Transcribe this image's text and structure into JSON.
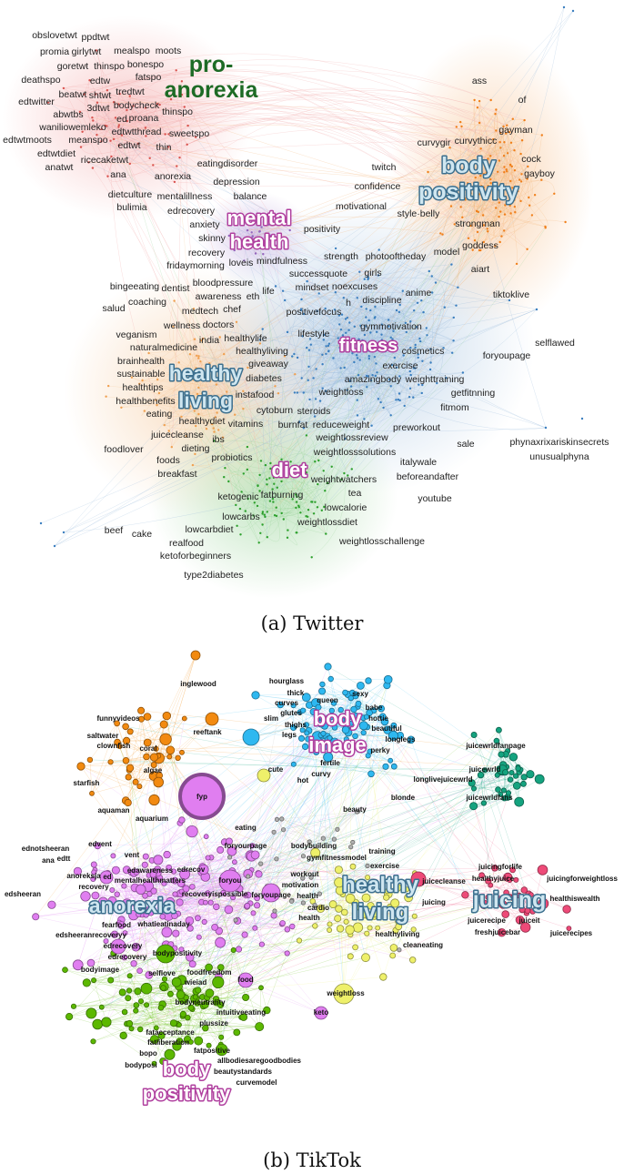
{
  "figure": {
    "twitter": {
      "caption": "(a) Twitter",
      "communities": [
        {
          "lines": [
            "pro-",
            "anorexia"
          ],
          "style": "solid",
          "color": "#1d6b25"
        },
        {
          "lines": [
            "body",
            "positivity"
          ],
          "style": "blue",
          "color": "#cfe6f0"
        },
        {
          "lines": [
            "mental",
            "health"
          ],
          "style": "pink",
          "color": "#ffffff"
        },
        {
          "lines": [
            "healthy",
            "living"
          ],
          "style": "blue",
          "color": "#cfe6f0"
        },
        {
          "lines": [
            "fitness"
          ],
          "style": "pink",
          "color": "#ffffff"
        },
        {
          "lines": [
            "diet"
          ],
          "style": "pink",
          "color": "#ffffff"
        }
      ],
      "hashtags": [
        "obslovetwt",
        "ppdtwt",
        "girlytwt",
        "goretwt",
        "promia",
        "mealspo",
        "moots",
        "thinspo",
        "bonespo",
        "edtw",
        "fatspo",
        "tredtwt",
        "deathspo",
        "beatwt",
        "shtwt",
        "bodycheck",
        "3dtwt",
        "proana",
        "thinspo",
        "edtwitter",
        "abwtbs",
        "waniliowemleko",
        "edtwtmoots",
        "edtwtthread",
        "edtwt",
        "meanspo",
        "ed",
        "sweetspo",
        "edtwtdiet",
        "ricecaketwt",
        "thin",
        "anatwt",
        "ana",
        "eatingdisorder",
        "anorexia",
        "depression",
        "dietculture",
        "mentalillness",
        "edrecovery",
        "bulimia",
        "balance",
        "anxiety",
        "skinny",
        "recovery",
        "loveis",
        "fridaymorning",
        "mindfulness",
        "ass",
        "of",
        "gayman",
        "curvythicc",
        "curvygir",
        "cock",
        "gayboy",
        "twitch",
        "confidence",
        "motivational",
        "style·belly",
        "strongman",
        "goddess",
        "model",
        "aiart",
        "tiktoklive",
        "photooftheday",
        "strength",
        "successquote",
        "noexcuses",
        "girls",
        "mindset",
        "discipline",
        "anime",
        "positivity",
        "bingeeating",
        "coaching",
        "salud",
        "dentist",
        "bloodpressure",
        "awareness",
        "eth",
        "life",
        "chef",
        "h",
        "medtech",
        "doctors",
        "positivefocus",
        "wellness",
        "veganism",
        "naturalmedicine",
        "india",
        "healthylife",
        "lifestyle",
        "gymmotivation",
        "healthyliving",
        "brainhealth",
        "sustainable",
        "healthtips",
        "giveaway",
        "diabetes",
        "exercise",
        "cosmetics",
        "weighttraining",
        "healthbenefits",
        "amazingbody",
        "instafood",
        "weightloss",
        "getfitnning",
        "healthydiet",
        "fitmom",
        "cytoburn",
        "burnfat",
        "steroids",
        "eating",
        "vitamins",
        "reduceweight",
        "juicecleanse",
        "dieting",
        "preworkout",
        "ibs",
        "weightlossreview",
        "foodlover",
        "weightlosssolutions",
        "foods",
        "probiotics",
        "breakfast",
        "sale",
        "italywale",
        "beforeandafter",
        "foryoupage",
        "weightwatchers",
        "tea",
        "ketogenic",
        "fatburning",
        "lowcalorie",
        "youtube",
        "weightlossdiet",
        "lowcarbs",
        "lowcarbdiet",
        "beef",
        "cake",
        "realfood",
        "weightlosschallenge",
        "ketoforbeginners",
        "type2diabetes",
        "phynaxrixariskinsecrets",
        "unusualphyna",
        "selflawed"
      ]
    },
    "tiktok": {
      "caption": "(b) TikTok",
      "communities": [
        {
          "lines": [
            "body",
            "image"
          ],
          "style": "pink",
          "color": "#ffffff"
        },
        {
          "lines": [
            "anorexia"
          ],
          "style": "blue",
          "color": "#cfe6f0"
        },
        {
          "lines": [
            "healthy",
            "living"
          ],
          "style": "blue",
          "color": "#cfe6f0"
        },
        {
          "lines": [
            "juicing"
          ],
          "style": "blue",
          "color": "#cfe6f0"
        },
        {
          "lines": [
            "body",
            "positivity"
          ],
          "style": "pink",
          "color": "#ffffff"
        }
      ],
      "hashtags": [
        "inglewood",
        "funnyvideos",
        "reeftank",
        "saltwater",
        "clownfish",
        "coral",
        "algae",
        "starfish",
        "aquaman",
        "aquarium",
        "fyp",
        "hourglass",
        "thick",
        "sexy",
        "curves",
        "glutes",
        "queen",
        "babe",
        "hottie",
        "slim",
        "thighs",
        "legs",
        "beautiful",
        "longlegs",
        "perky",
        "fertile",
        "juicewrldfanpage",
        "cute",
        "curvy",
        "juicewrld",
        "hot",
        "longlivejuicewrld",
        "blonde",
        "juicewrldfans",
        "beauty",
        "eating",
        "foryourpage",
        "bodybuilding",
        "edvent",
        "ednotsheeran",
        "edtt",
        "ana",
        "vent",
        "ed",
        "edawareness",
        "gymfitnessmodel",
        "training",
        "mentalhealthmatters",
        "edrecov",
        "foryou",
        "workout",
        "motivation",
        "exercise",
        "recovery",
        "anoreksja",
        "foryoupage",
        "recoveryispossible",
        "edsheeran",
        "whatieatinaday",
        "fearfood",
        "edsheeranrecoveryy",
        "edrecovery",
        "edrecovery",
        "bodypositivity",
        "bodyimage",
        "selflove",
        "foodfreedom",
        "wieiad",
        "food",
        "bodyneutrality",
        "intuitiveeating",
        "plussize",
        "fatacceptance",
        "fatliberation",
        "bopo",
        "fatpositive",
        "bodyposi",
        "allbodiesaregoodbodies",
        "beautystandards",
        "curvemodel",
        "weightloss",
        "keto",
        "health",
        "cardio",
        "health",
        "healthyliving",
        "cleaneating",
        "juicecleanse",
        "healthyjuice",
        "juicingforlife",
        "juicingforweightloss",
        "juicing",
        "juicerecipe",
        "juiceit",
        "freshjuicebar",
        "healthiswealth",
        "juicerecipes"
      ]
    },
    "colors": {
      "twitter": {
        "pro_anorexia": "#d9534f",
        "body_positivity": "#f07f1a",
        "healthy_living": "#f0a050",
        "fitness": "#3b7fbf",
        "diet": "#2ca02c",
        "mental_health": "#9467bd"
      },
      "tiktok": {
        "aquarium": "#f28a10",
        "body_image": "#2eb8f0",
        "juicewrld": "#14a37f",
        "juicing": "#ee4a78",
        "anorexia": "#e07ef0",
        "healthy_living": "#eef06a",
        "body_positivity": "#5cb800",
        "other": "#b0b0b0"
      }
    }
  }
}
